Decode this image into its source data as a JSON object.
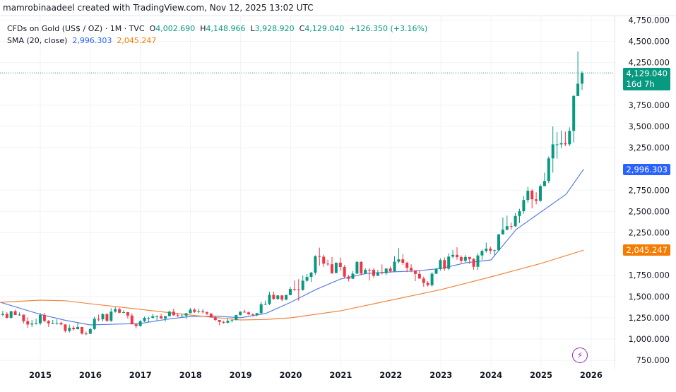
{
  "header": {
    "credit": "mamrobinaadeel created with TradingView.com, Nov 12, 2025 13:02 UTC"
  },
  "legend": {
    "symbol": "CFDs on Gold (US$ / OZ) · 1M · TVC",
    "o_label": "O",
    "o": "4,002.690",
    "h_label": "H",
    "h": "4,148.966",
    "l_label": "L",
    "l": "3,928.920",
    "c_label": "C",
    "c": "4,129.040",
    "change": "+126.350 (+3.16%)",
    "sma_label": "SMA (20, close)",
    "sma1": "2,996.303",
    "sma2": "2,045.247"
  },
  "price_label": {
    "price": "4,129.040",
    "countdown": "16d 7h",
    "color": "#089981"
  },
  "sma_labels": {
    "sma1": "2,996.303",
    "sma1_color": "#2962ff",
    "sma2": "2,045.247",
    "sma2_color": "#f57c00"
  },
  "icons": {
    "bolt": "lightning-icon"
  },
  "chart_data": {
    "type": "candlestick",
    "interval": "1M",
    "start": "2014-03",
    "y_ticks": [
      "4,750.000",
      "4,500.000",
      "4,250.000",
      "3,750.000",
      "3,500.000",
      "3,250.000",
      "2,750.000",
      "2,500.000",
      "2,250.000",
      "1,750.000",
      "1,500.000",
      "1,250.000",
      "1,000.000",
      "750.000"
    ],
    "y_tick_values": [
      4750,
      4500,
      4250,
      3750,
      3500,
      3250,
      2750,
      2500,
      2250,
      1750,
      1500,
      1250,
      1000,
      750
    ],
    "x_ticks": [
      "2015",
      "2016",
      "2017",
      "2018",
      "2019",
      "2020",
      "2021",
      "2022",
      "2023",
      "2024",
      "2025",
      "2026"
    ],
    "ylim": [
      650,
      4900
    ],
    "grid": true,
    "up_color": "#089981",
    "down_color": "#f23645",
    "first_open": 1330,
    "close": [
      1284,
      1296,
      1250,
      1327,
      1282,
      1287,
      1210,
      1171,
      1182,
      1184,
      1283,
      1212,
      1183,
      1184,
      1190,
      1172,
      1095,
      1132,
      1115,
      1142,
      1065,
      1061,
      1118,
      1238,
      1232,
      1293,
      1215,
      1322,
      1351,
      1309,
      1316,
      1276,
      1173,
      1152,
      1211,
      1249,
      1249,
      1268,
      1268,
      1242,
      1269,
      1322,
      1280,
      1271,
      1275,
      1303,
      1345,
      1318,
      1325,
      1315,
      1298,
      1253,
      1224,
      1201,
      1192,
      1215,
      1222,
      1282,
      1321,
      1313,
      1292,
      1284,
      1305,
      1409,
      1413,
      1520,
      1472,
      1513,
      1464,
      1517,
      1589,
      1585,
      1577,
      1686,
      1730,
      1781,
      1975,
      1968,
      1886,
      1879,
      1776,
      1898,
      1847,
      1734,
      1708,
      1769,
      1907,
      1770,
      1814,
      1813,
      1743,
      1783,
      1774,
      1829,
      1797,
      1909,
      1937,
      1897,
      1837,
      1807,
      1766,
      1711,
      1660,
      1633,
      1768,
      1824,
      1928,
      1827,
      1969,
      1990,
      1963,
      1919,
      1965,
      1940,
      1849,
      1983,
      2036,
      2063,
      2039,
      2044,
      2230,
      2286,
      2327,
      2326,
      2447,
      2503,
      2635,
      2744,
      2643,
      2625,
      2798,
      2858,
      3124,
      3289,
      3289,
      3303,
      3290,
      3448,
      3858,
      4002.69,
      4129.04
    ],
    "high": [
      1392,
      1331,
      1315,
      1332,
      1345,
      1312,
      1287,
      1255,
      1224,
      1238,
      1307,
      1307,
      1223,
      1224,
      1232,
      1205,
      1172,
      1170,
      1157,
      1191,
      1142,
      1088,
      1128,
      1263,
      1287,
      1304,
      1303,
      1362,
      1375,
      1367,
      1338,
      1317,
      1303,
      1180,
      1220,
      1264,
      1261,
      1295,
      1279,
      1296,
      1270,
      1331,
      1357,
      1306,
      1299,
      1307,
      1366,
      1361,
      1356,
      1353,
      1326,
      1309,
      1266,
      1216,
      1214,
      1243,
      1237,
      1284,
      1326,
      1346,
      1324,
      1300,
      1306,
      1439,
      1452,
      1555,
      1557,
      1518,
      1515,
      1524,
      1611,
      1689,
      1704,
      1747,
      1765,
      1789,
      1984,
      2075,
      1992,
      1933,
      1965,
      1900,
      1959,
      1871,
      1755,
      1798,
      1913,
      1917,
      1833,
      1834,
      1836,
      1814,
      1877,
      1831,
      1853,
      1974,
      2070,
      1998,
      1910,
      1879,
      1784,
      1807,
      1735,
      1682,
      1786,
      1833,
      1949,
      1959,
      2009,
      2048,
      2079,
      1984,
      1987,
      1949,
      1953,
      2009,
      2052,
      2135,
      2088,
      2052,
      2236,
      2431,
      2451,
      2368,
      2483,
      2531,
      2685,
      2790,
      2761,
      2726,
      2817,
      2956,
      3148,
      3500,
      3435,
      3452,
      3439,
      3489,
      3871,
      4381,
      4148.966
    ],
    "low": [
      1277,
      1268,
      1240,
      1241,
      1282,
      1273,
      1183,
      1131,
      1141,
      1170,
      1167,
      1197,
      1142,
      1175,
      1169,
      1162,
      1077,
      1077,
      1098,
      1115,
      1052,
      1046,
      1072,
      1107,
      1208,
      1208,
      1199,
      1200,
      1310,
      1301,
      1304,
      1241,
      1171,
      1124,
      1146,
      1200,
      1195,
      1240,
      1214,
      1236,
      1205,
      1266,
      1272,
      1260,
      1264,
      1237,
      1302,
      1307,
      1303,
      1301,
      1282,
      1251,
      1211,
      1160,
      1180,
      1183,
      1196,
      1221,
      1276,
      1310,
      1280,
      1266,
      1266,
      1295,
      1400,
      1400,
      1459,
      1459,
      1445,
      1454,
      1517,
      1563,
      1451,
      1567,
      1670,
      1671,
      1757,
      1863,
      1849,
      1860,
      1764,
      1775,
      1803,
      1717,
      1677,
      1721,
      1766,
      1750,
      1762,
      1688,
      1721,
      1746,
      1759,
      1753,
      1780,
      1786,
      1890,
      1872,
      1787,
      1785,
      1681,
      1709,
      1615,
      1617,
      1616,
      1765,
      1804,
      1804,
      1810,
      1950,
      1932,
      1893,
      1903,
      1884,
      1815,
      1810,
      1931,
      2016,
      2002,
      1985,
      2039,
      2228,
      2277,
      2286,
      2319,
      2364,
      2472,
      2604,
      2537,
      2583,
      2614,
      2833,
      2833,
      2957,
      3121,
      3247,
      3268,
      3268,
      3311,
      3886,
      3928.92
    ],
    "series": [
      {
        "name": "SMA (20, close)",
        "color": "#5b7fe0",
        "points": [
          [
            2014.2,
            1432
          ],
          [
            2015,
            1290
          ],
          [
            2015.5,
            1220
          ],
          [
            2016,
            1166
          ],
          [
            2016.5,
            1175
          ],
          [
            2017,
            1183
          ],
          [
            2017.5,
            1230
          ],
          [
            2018,
            1266
          ],
          [
            2018.5,
            1270
          ],
          [
            2019,
            1250
          ],
          [
            2019.5,
            1300
          ],
          [
            2020,
            1432
          ],
          [
            2020.5,
            1581
          ],
          [
            2021,
            1706
          ],
          [
            2021.5,
            1770
          ],
          [
            2022,
            1789
          ],
          [
            2022.5,
            1800
          ],
          [
            2023,
            1830
          ],
          [
            2023.5,
            1897
          ],
          [
            2024,
            1930
          ],
          [
            2024.5,
            2287
          ],
          [
            2025,
            2495
          ],
          [
            2025.5,
            2703
          ],
          [
            2025.85,
            2996.303
          ]
        ]
      },
      {
        "name": "SMA (20, close)",
        "color": "#f0883e",
        "points": [
          [
            2014.2,
            1432
          ],
          [
            2015,
            1457
          ],
          [
            2015.5,
            1450
          ],
          [
            2016,
            1415
          ],
          [
            2017,
            1349
          ],
          [
            2018,
            1282
          ],
          [
            2019,
            1224
          ],
          [
            2019.5,
            1230
          ],
          [
            2020,
            1249
          ],
          [
            2021,
            1332
          ],
          [
            2022,
            1457
          ],
          [
            2023,
            1581
          ],
          [
            2024,
            1731
          ],
          [
            2025,
            1889
          ],
          [
            2025.85,
            2045.247
          ]
        ]
      }
    ]
  }
}
